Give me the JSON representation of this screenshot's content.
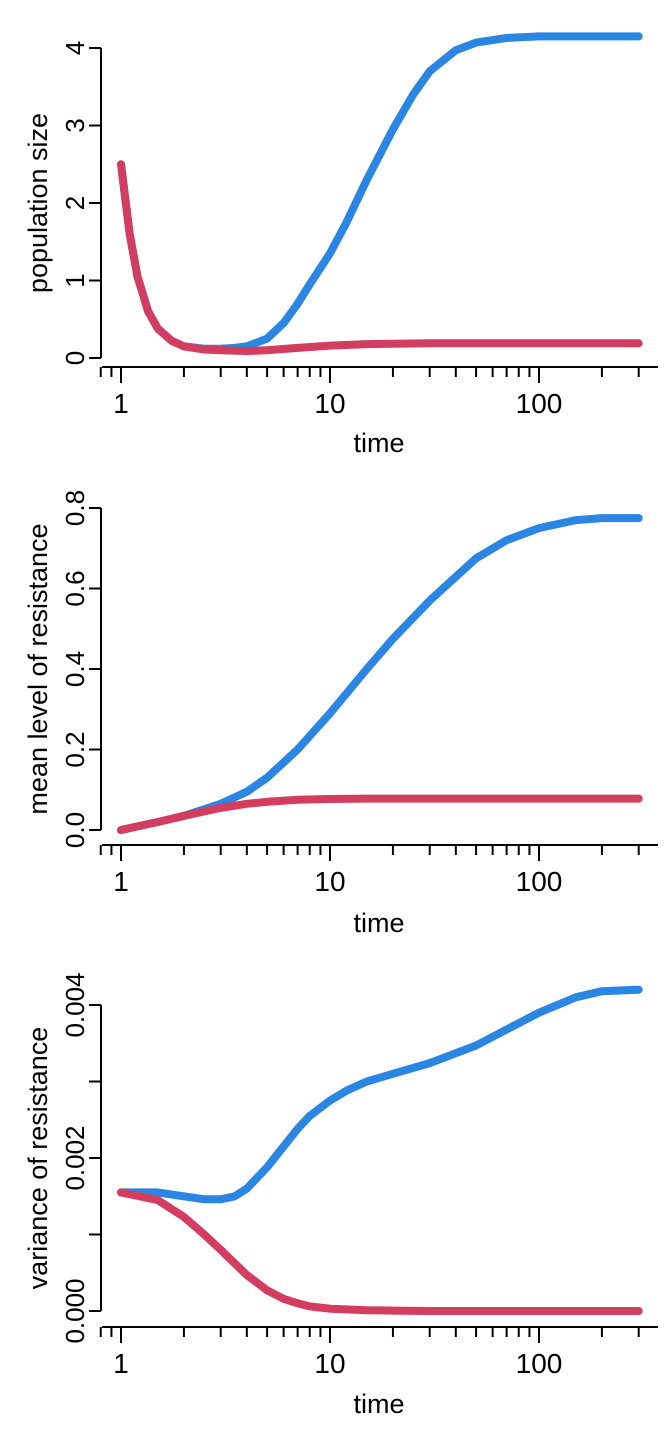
{
  "colors": {
    "blue": "#2a86e2",
    "red": "#d23d60",
    "axis": "#000000"
  },
  "chart_data": [
    {
      "type": "line",
      "xscale": "log",
      "xlabel": "time",
      "ylabel": "population size",
      "xlim": [
        1,
        300
      ],
      "ylim": [
        0,
        4
      ],
      "xticks_labeled": [
        "1",
        "10",
        "100"
      ],
      "yticks": [
        0,
        1,
        2,
        3,
        4
      ],
      "ytick_labels": [
        "0",
        "1",
        "2",
        "3",
        "4"
      ],
      "grid": false,
      "legend": "none",
      "series": [
        {
          "color": "#2a86e2",
          "x": [
            1,
            1.1,
            1.2,
            1.35,
            1.5,
            1.75,
            2,
            2.5,
            3,
            3.5,
            4,
            5,
            6,
            7,
            8,
            10,
            12,
            15,
            20,
            25,
            30,
            40,
            50,
            70,
            100,
            150,
            200,
            300
          ],
          "y": [
            2.5,
            1.6,
            1.05,
            0.6,
            0.38,
            0.22,
            0.15,
            0.12,
            0.12,
            0.13,
            0.15,
            0.25,
            0.45,
            0.7,
            0.95,
            1.35,
            1.75,
            2.3,
            2.95,
            3.4,
            3.7,
            3.97,
            4.07,
            4.13,
            4.15,
            4.15,
            4.15,
            4.15
          ]
        },
        {
          "color": "#d23d60",
          "x": [
            1,
            1.1,
            1.2,
            1.35,
            1.5,
            1.75,
            2,
            2.5,
            3,
            4,
            5,
            7,
            10,
            15,
            20,
            30,
            50,
            100,
            200,
            300
          ],
          "y": [
            2.5,
            1.6,
            1.05,
            0.6,
            0.38,
            0.22,
            0.15,
            0.11,
            0.1,
            0.09,
            0.1,
            0.13,
            0.16,
            0.18,
            0.185,
            0.19,
            0.19,
            0.19,
            0.19,
            0.19
          ]
        }
      ]
    },
    {
      "type": "line",
      "xscale": "log",
      "xlabel": "time",
      "ylabel": "mean level of resistance",
      "xlim": [
        1,
        300
      ],
      "ylim": [
        0,
        0.8
      ],
      "xticks_labeled": [
        "1",
        "10",
        "100"
      ],
      "yticks": [
        0,
        0.2,
        0.4,
        0.6,
        0.8
      ],
      "ytick_labels": [
        "0.0",
        "0.2",
        "0.4",
        "0.6",
        "0.8"
      ],
      "grid": false,
      "legend": "none",
      "series": [
        {
          "color": "#2a86e2",
          "x": [
            1,
            1.5,
            2,
            3,
            4,
            5,
            7,
            10,
            15,
            20,
            30,
            50,
            70,
            100,
            150,
            200,
            300
          ],
          "y": [
            0,
            0.02,
            0.035,
            0.065,
            0.095,
            0.13,
            0.2,
            0.29,
            0.4,
            0.475,
            0.57,
            0.675,
            0.72,
            0.75,
            0.77,
            0.775,
            0.775
          ]
        },
        {
          "color": "#d23d60",
          "x": [
            1,
            1.5,
            2,
            3,
            4,
            5,
            7,
            10,
            15,
            20,
            30,
            50,
            100,
            200,
            300
          ],
          "y": [
            0,
            0.02,
            0.035,
            0.055,
            0.065,
            0.07,
            0.075,
            0.077,
            0.078,
            0.078,
            0.078,
            0.078,
            0.078,
            0.078,
            0.078
          ]
        }
      ]
    },
    {
      "type": "line",
      "xscale": "log",
      "xlabel": "time",
      "ylabel": "variance of resistance",
      "xlim": [
        1,
        300
      ],
      "ylim": [
        0,
        0.004
      ],
      "xticks_labeled": [
        "1",
        "10",
        "100"
      ],
      "yticks": [
        0,
        0.001,
        0.002,
        0.003,
        0.004
      ],
      "ytick_labels": [
        "0.000",
        "",
        "0.002",
        "",
        "0.004"
      ],
      "grid": false,
      "legend": "none",
      "series": [
        {
          "color": "#2a86e2",
          "x": [
            1,
            1.5,
            2,
            2.5,
            3,
            3.5,
            4,
            5,
            6,
            7,
            8,
            10,
            12,
            15,
            20,
            30,
            50,
            70,
            100,
            150,
            200,
            300
          ],
          "y": [
            0.00155,
            0.00155,
            0.0015,
            0.00146,
            0.00146,
            0.0015,
            0.0016,
            0.00188,
            0.00215,
            0.00238,
            0.00255,
            0.00275,
            0.00288,
            0.003,
            0.0031,
            0.00324,
            0.00347,
            0.00368,
            0.0039,
            0.0041,
            0.00418,
            0.0042
          ]
        },
        {
          "color": "#d23d60",
          "x": [
            1,
            1.5,
            2,
            2.5,
            3,
            4,
            5,
            6,
            7,
            8,
            10,
            15,
            20,
            30,
            50,
            100,
            300
          ],
          "y": [
            0.00155,
            0.00145,
            0.00123,
            0.001,
            0.0008,
            0.00047,
            0.00027,
            0.00016,
            0.0001,
            6e-05,
            3e-05,
            1e-05,
            5e-06,
            0,
            0,
            0,
            0
          ]
        }
      ]
    }
  ]
}
